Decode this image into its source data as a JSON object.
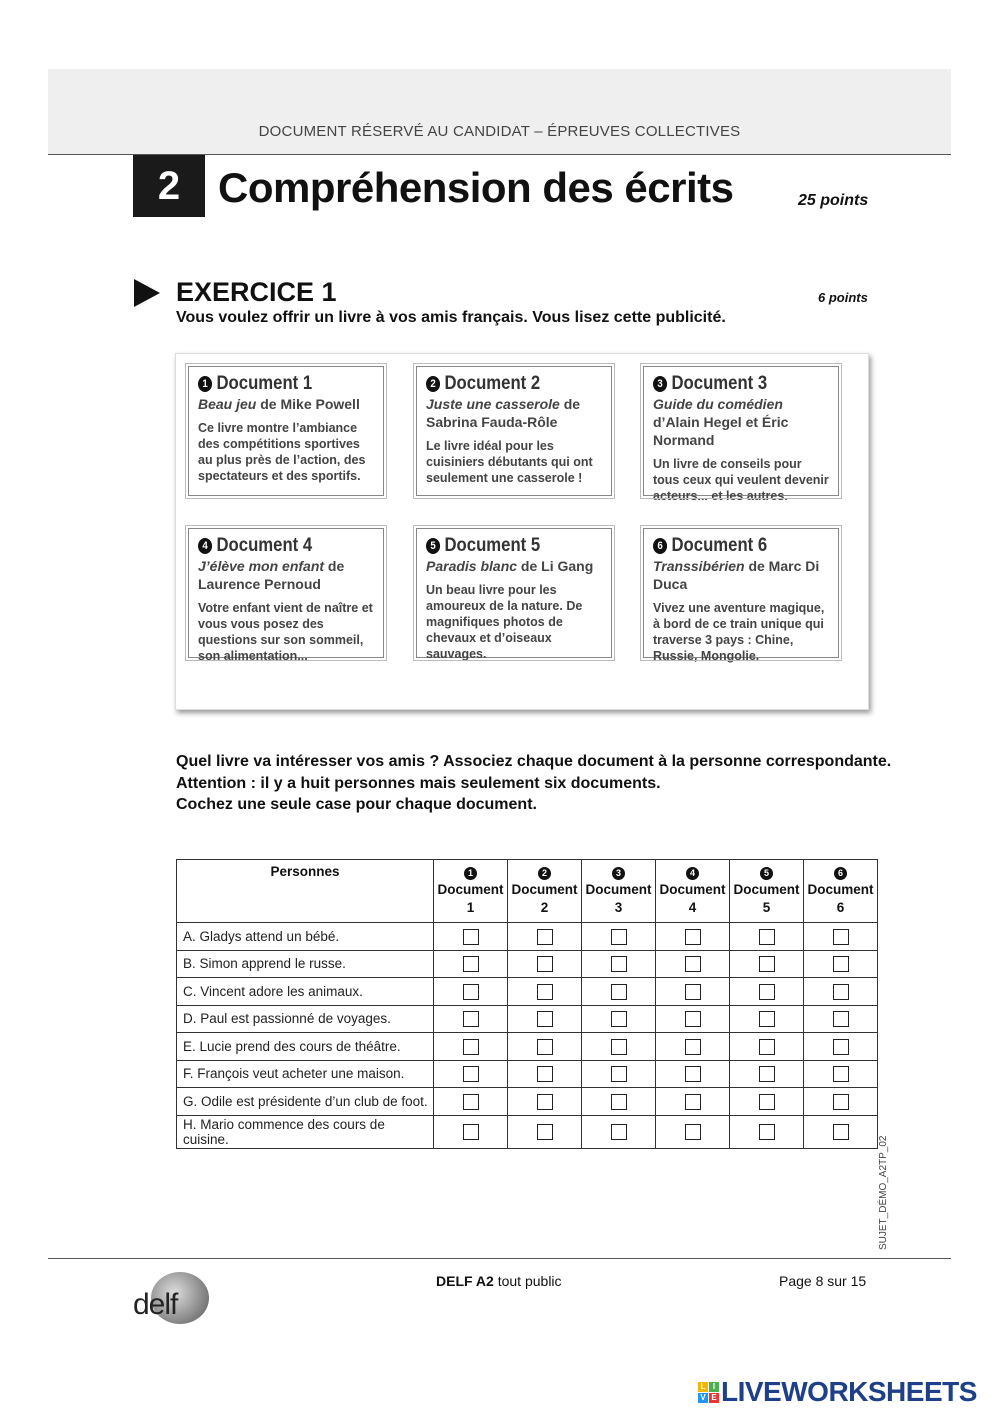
{
  "header": {
    "banner": "DOCUMENT RÉSERVÉ AU CANDIDAT – ÉPREUVES COLLECTIVES"
  },
  "section": {
    "number": "2",
    "title": "Compréhension des écrits",
    "points": "25 points"
  },
  "exercise": {
    "title": "EXERCICE 1",
    "points": "6 points",
    "intro": "Vous voulez offrir un livre à vos amis français. Vous lisez cette publicité."
  },
  "documents": [
    {
      "num": "1",
      "title": "Document 1",
      "book": "Beau jeu",
      "author": " de Mike Powell",
      "desc": "Ce livre montre l’ambiance des compétitions sportives au plus près de l’action, des spectateurs et des sportifs."
    },
    {
      "num": "2",
      "title": "Document 2",
      "book": "Juste une casserole",
      "author": " de Sabrina Fauda-Rôle",
      "desc": "Le livre idéal pour les cuisiniers débutants qui ont seulement une casserole !"
    },
    {
      "num": "3",
      "title": "Document 3",
      "book": "Guide du comédien",
      "author": " d’Alain Hegel et Éric Normand",
      "desc": "Un livre de conseils pour tous ceux qui veulent devenir acteurs... et les autres."
    },
    {
      "num": "4",
      "title": "Document 4",
      "book": "J’élève mon enfant",
      "author": " de Laurence Pernoud",
      "desc": "Votre enfant vient de naître et vous vous posez des questions sur son sommeil, son alimentation..."
    },
    {
      "num": "5",
      "title": "Document 5",
      "book": "Paradis blanc",
      "author": " de Li Gang",
      "desc": "Un beau livre pour les amoureux de la nature. De magnifiques photos de chevaux et d’oiseaux sauvages."
    },
    {
      "num": "6",
      "title": "Document 6",
      "book": "Transsibérien",
      "author": " de Marc Di Duca",
      "desc": "Vivez une aventure magique, à bord de ce train unique qui traverse 3 pays : Chine, Russie, Mongolie."
    }
  ],
  "instructions": [
    "Quel livre va intéresser vos amis ? Associez chaque document à la personne correspondante.",
    "Attention : il y a huit personnes mais seulement six documents.",
    "Cochez une seule case pour chaque document."
  ],
  "table": {
    "header": "Personnes",
    "columns": [
      {
        "num": "1",
        "label": "Document",
        "n": "1"
      },
      {
        "num": "2",
        "label": "Document",
        "n": "2"
      },
      {
        "num": "3",
        "label": "Document",
        "n": "3"
      },
      {
        "num": "4",
        "label": "Document",
        "n": "4"
      },
      {
        "num": "5",
        "label": "Document",
        "n": "5"
      },
      {
        "num": "6",
        "label": "Document",
        "n": "6"
      }
    ],
    "rows": [
      "A. Gladys attend un bébé.",
      "B. Simon apprend le russe.",
      "C. Vincent adore les animaux.",
      "D. Paul est passionné de voyages.",
      "E. Lucie prend des cours de théâtre.",
      "F. François veut acheter une maison.",
      "G. Odile est présidente d’un club de foot.",
      "H. Mario commence des cours de cuisine."
    ]
  },
  "side_code": "SUJET_DÉMO_A2TP_02",
  "footer": {
    "logo": "delf",
    "exam_bold": "DELF A2",
    "exam_rest": " tout public",
    "page": "Page 8 sur 15"
  },
  "brand": {
    "name": "LIVEWORKSHEETS",
    "letters": [
      "L",
      "I",
      "V",
      "E"
    ],
    "colors": [
      "#f2b705",
      "#4caf50",
      "#2196f3",
      "#e53935"
    ]
  }
}
